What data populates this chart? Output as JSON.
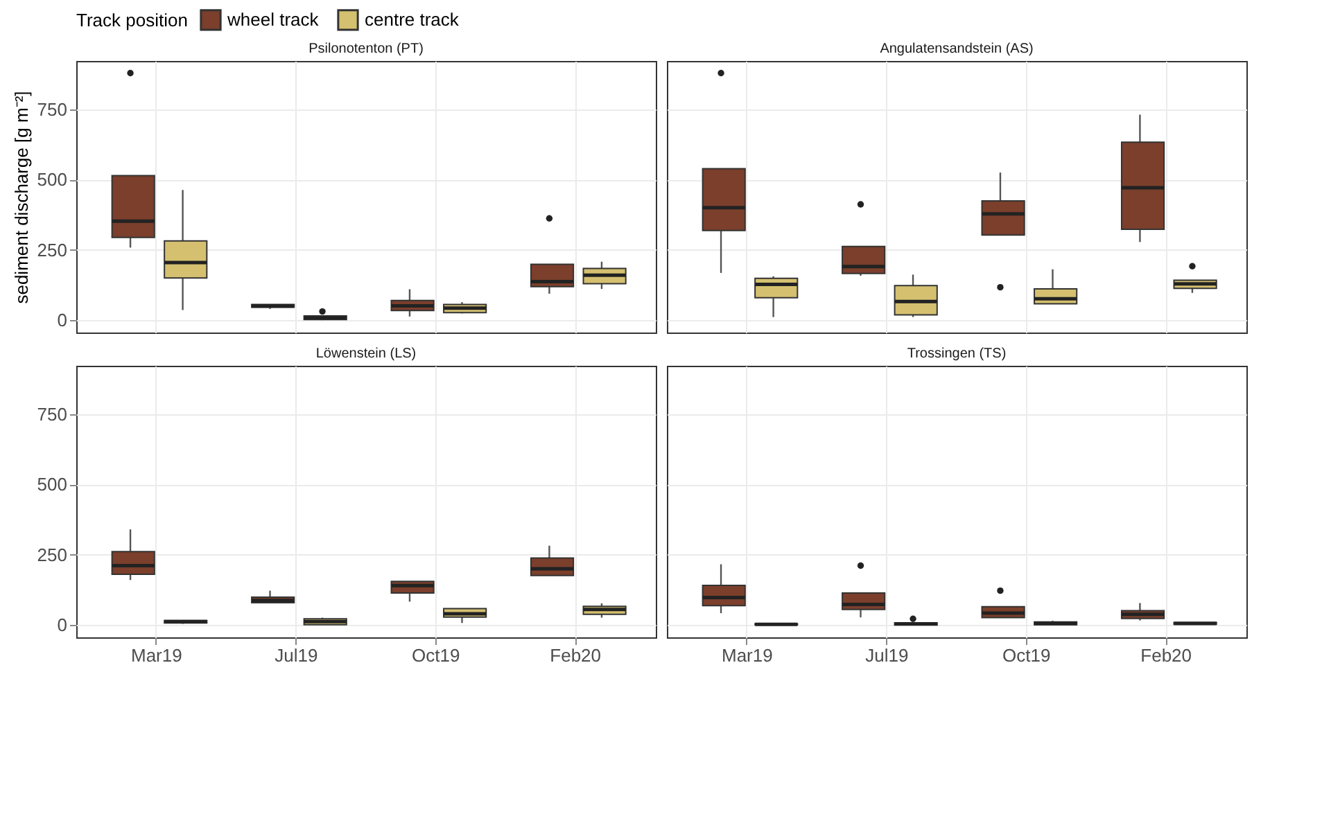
{
  "chart_data": [
    {
      "type": "box",
      "title": "Psilonotenton (PT)",
      "ylabel": "sediment discharge [g m⁻²]",
      "legend_title": "Track position",
      "legend": "top",
      "grid": true,
      "tick_labels": "y",
      "categories": [
        "Mar19",
        "Jul19",
        "Oct19",
        "Feb20"
      ],
      "ylim": [
        -44,
        922
      ],
      "yticks": [
        0,
        250,
        500,
        750
      ],
      "series": [
        {
          "name": "wheel track",
          "color": "#7b3f2b",
          "boxes": [
            {
              "low": 258,
              "q1": 294,
              "median": 352,
              "q3": 514,
              "high": 514,
              "outliers": [
                879
              ]
            },
            {
              "low": 40,
              "q1": 46,
              "median": 50,
              "q3": 56,
              "high": 56
            },
            {
              "low": 13,
              "q1": 34,
              "median": 51,
              "q3": 70,
              "high": 110
            },
            {
              "low": 94,
              "q1": 119,
              "median": 137,
              "q3": 199,
              "high": 199,
              "outliers": [
                362
              ]
            }
          ]
        },
        {
          "name": "centre track",
          "color": "#d5c070",
          "boxes": [
            {
              "low": 36,
              "q1": 150,
              "median": 205,
              "q3": 282,
              "high": 463
            },
            {
              "low": 0,
              "q1": 2,
              "median": 8,
              "q3": 15,
              "high": 15,
              "outliers": [
                31
              ]
            },
            {
              "low": 24,
              "q1": 27,
              "median": 43,
              "q3": 56,
              "high": 64
            },
            {
              "low": 111,
              "q1": 130,
              "median": 160,
              "q3": 184,
              "high": 208
            }
          ]
        }
      ]
    },
    {
      "type": "box",
      "title": "Angulatensandstein (AS)",
      "grid": true,
      "tick_labels": false,
      "categories": [
        "Mar19",
        "Jul19",
        "Oct19",
        "Feb20"
      ],
      "ylim": [
        -44,
        922
      ],
      "yticks": [
        0,
        250,
        500,
        750
      ],
      "series": [
        {
          "name": "wheel track",
          "color": "#7b3f2b",
          "boxes": [
            {
              "low": 168,
              "q1": 319,
              "median": 400,
              "q3": 539,
              "high": 539,
              "outliers": [
                879
              ]
            },
            {
              "low": 158,
              "q1": 166,
              "median": 191,
              "q3": 262,
              "high": 262,
              "outliers": [
                412
              ]
            },
            {
              "low": 303,
              "q1": 303,
              "median": 378,
              "q3": 424,
              "high": 525,
              "outliers": [
                117
              ]
            },
            {
              "low": 278,
              "q1": 323,
              "median": 471,
              "q3": 633,
              "high": 731
            }
          ]
        },
        {
          "name": "centre track",
          "color": "#d5c070",
          "boxes": [
            {
              "low": 11,
              "q1": 80,
              "median": 127,
              "q3": 149,
              "high": 156
            },
            {
              "low": 11,
              "q1": 19,
              "median": 66,
              "q3": 123,
              "high": 162
            },
            {
              "low": 58,
              "q1": 58,
              "median": 76,
              "q3": 111,
              "high": 181
            },
            {
              "low": 97,
              "q1": 113,
              "median": 129,
              "q3": 142,
              "high": 142,
              "outliers": [
                192
              ]
            }
          ]
        }
      ]
    },
    {
      "type": "box",
      "title": "Löwenstein (LS)",
      "grid": true,
      "categories": [
        "Mar19",
        "Jul19",
        "Oct19",
        "Feb20"
      ],
      "ylim": [
        -44,
        922
      ],
      "yticks": [
        0,
        250,
        500,
        750
      ],
      "series": [
        {
          "name": "wheel track",
          "color": "#7b3f2b",
          "boxes": [
            {
              "low": 160,
              "q1": 180,
              "median": 211,
              "q3": 261,
              "high": 340
            },
            {
              "low": 79,
              "q1": 79,
              "median": 87,
              "q3": 99,
              "high": 122
            },
            {
              "low": 83,
              "q1": 114,
              "median": 140,
              "q3": 155,
              "high": 155
            },
            {
              "low": 176,
              "q1": 176,
              "median": 200,
              "q3": 238,
              "high": 282
            }
          ]
        },
        {
          "name": "centre track",
          "color": "#d5c070",
          "boxes": [
            {
              "low": 4,
              "q1": 7,
              "median": 12,
              "q3": 16,
              "high": 16
            },
            {
              "low": 1,
              "q1": 1,
              "median": 12,
              "q3": 22,
              "high": 26
            },
            {
              "low": 7,
              "q1": 28,
              "median": 40,
              "q3": 58,
              "high": 59
            },
            {
              "low": 26,
              "q1": 38,
              "median": 55,
              "q3": 66,
              "high": 77
            }
          ]
        }
      ]
    },
    {
      "type": "box",
      "title": "Trossingen (TS)",
      "grid": true,
      "tick_labels": "x",
      "categories": [
        "Mar19",
        "Jul19",
        "Oct19",
        "Feb20"
      ],
      "ylim": [
        -44,
        922
      ],
      "yticks": [
        0,
        250,
        500,
        750
      ],
      "series": [
        {
          "name": "wheel track",
          "color": "#7b3f2b",
          "boxes": [
            {
              "low": 42,
              "q1": 69,
              "median": 98,
              "q3": 141,
              "high": 216
            },
            {
              "low": 27,
              "q1": 55,
              "median": 73,
              "q3": 114,
              "high": 114,
              "outliers": [
                211
              ]
            },
            {
              "low": 26,
              "q1": 26,
              "median": 42,
              "q3": 65,
              "high": 65,
              "outliers": [
                122
              ]
            },
            {
              "low": 16,
              "q1": 23,
              "median": 38,
              "q3": 51,
              "high": 78
            }
          ]
        },
        {
          "name": "centre track",
          "color": "#d5c070",
          "boxes": [
            {
              "low": 0,
              "q1": 1,
              "median": 2,
              "q3": 4,
              "high": 5
            },
            {
              "low": 0,
              "q1": 0,
              "median": 4,
              "q3": 8,
              "high": 8,
              "outliers": [
                22
              ]
            },
            {
              "low": 1,
              "q1": 1,
              "median": 5,
              "q3": 11,
              "high": 15
            },
            {
              "low": 3,
              "q1": 3,
              "median": 5,
              "q3": 9,
              "high": 9
            }
          ]
        }
      ]
    }
  ]
}
